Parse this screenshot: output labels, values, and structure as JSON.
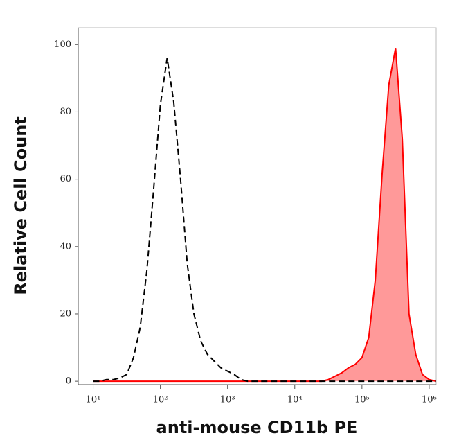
{
  "chart_data": {
    "type": "line",
    "xscale": "log",
    "xlabel": "anti-mouse CD11b PE",
    "ylabel": "Relative Cell Count",
    "x": [
      10,
      12.6,
      15.8,
      20,
      25.1,
      31.6,
      39.8,
      50.1,
      63.1,
      79.4,
      100,
      126,
      158,
      200,
      251,
      316,
      398,
      501,
      631,
      794,
      1000,
      1260,
      1580,
      2000,
      2510,
      3160,
      3980,
      5010,
      6310,
      7940,
      10000,
      12600,
      15800,
      20000,
      25100,
      31600,
      39800,
      50100,
      63100,
      79400,
      100000,
      126000,
      158000,
      200000,
      251000,
      316000,
      398000,
      501000,
      631000,
      794000,
      1000000,
      1260000
    ],
    "series": [
      {
        "color": "#000000",
        "dash": true,
        "values": [
          0,
          0,
          0.5,
          0.5,
          1,
          2,
          7,
          16,
          33,
          57,
          82,
          96,
          83,
          60,
          35,
          20,
          12,
          8,
          6,
          4,
          3,
          2,
          0.5,
          0,
          0,
          0,
          0,
          0,
          0,
          0,
          0,
          0,
          0,
          0,
          0,
          0,
          0,
          0,
          0,
          0,
          0,
          0,
          0,
          0,
          0,
          0,
          0,
          0,
          0,
          0,
          0,
          0
        ]
      },
      {
        "color": "#ff0000",
        "fill": "#ff9999",
        "values": [
          0,
          0,
          0,
          0,
          0,
          0,
          0,
          0,
          0,
          0,
          0,
          0,
          0,
          0,
          0,
          0,
          0,
          0,
          0,
          0,
          0,
          0,
          0,
          0,
          0,
          0,
          0,
          0,
          0,
          0,
          0,
          0,
          0,
          0,
          0,
          0.5,
          1.5,
          2.5,
          4,
          5,
          7,
          13,
          30,
          62,
          88,
          99,
          72,
          20,
          8,
          2,
          0.5,
          0
        ]
      }
    ],
    "xlim": [
      6,
      1270000
    ],
    "xticks": [
      {
        "value": 10,
        "label": "10¹"
      },
      {
        "value": 100,
        "label": "10²"
      },
      {
        "value": 1000,
        "label": "10³"
      },
      {
        "value": 10000,
        "label": "10⁴"
      },
      {
        "value": 100000,
        "label": "10⁵"
      },
      {
        "value": 1000000,
        "label": "10⁶"
      }
    ],
    "ylim": [
      -1,
      105
    ],
    "yticks": [
      0,
      20,
      40,
      60,
      80,
      100
    ]
  }
}
